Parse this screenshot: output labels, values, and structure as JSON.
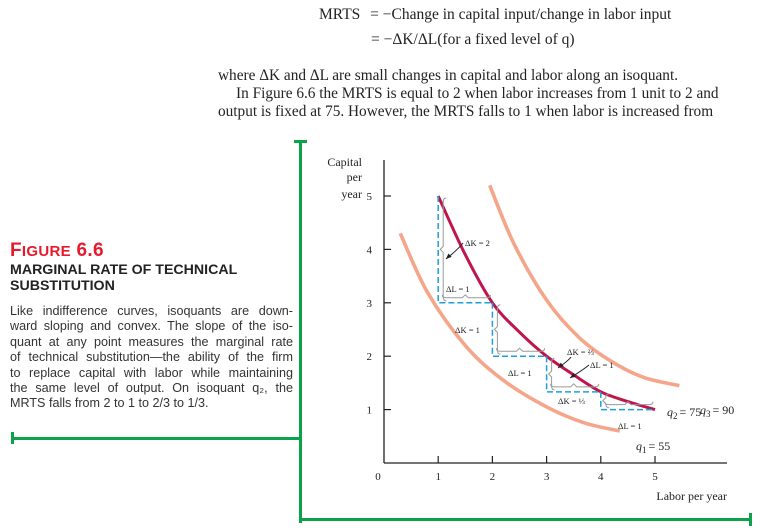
{
  "equations": {
    "line1_lhs": "MRTS",
    "line1_rhs": "= −Change in capital input/change in labor input",
    "line2_rhs": "= −ΔK/ΔL(for a fixed level of q)"
  },
  "paragraph": {
    "line1": "where ΔK and ΔL are small changes in capital and labor along an isoquant.",
    "line2": "In Figure 6.6 the MRTS is equal to 2 when labor increases from 1 unit to 2 and",
    "line3": "output is fixed at 75. However, the MRTS falls to 1 when labor is increased from"
  },
  "figure": {
    "label_first": "F",
    "label_rest": "IGURE",
    "number": "6.6",
    "title_line1": "MARGINAL RATE OF TECHNICAL",
    "title_line2": "SUBSTITUTION",
    "caption_lines": [
      "Like indifference curves, isoquants are down-",
      "ward sloping and convex. The slope of the iso-",
      "quant at any point measures the marginal rate",
      "of technical substitution—the ability of the firm",
      "to replace capital with labor while maintaining",
      "the same level of output. On isoquant q₂, the",
      "MRTS falls from 2 to 1 to 2/3 to 1/3."
    ]
  },
  "colors": {
    "accent_red": "#e8192c",
    "rule_green": "#0aa34a",
    "q2_curve": "#c0154a",
    "q1_q3_curves": "#f5a58a",
    "dashed_steps": "#1aa0dc"
  },
  "chart_data": {
    "type": "line",
    "title": "Marginal Rate of Technical Substitution",
    "xlabel": "Labor per year",
    "ylabel_lines": [
      "Capital",
      "per",
      "year"
    ],
    "xlim": [
      0,
      6.3
    ],
    "ylim": [
      0,
      5.5
    ],
    "x_ticks": [
      1,
      2,
      3,
      4,
      5
    ],
    "y_ticks": [
      1,
      2,
      3,
      4,
      5
    ],
    "origin_label": "0",
    "grid": false,
    "series": [
      {
        "name": "q1 = 55",
        "label_main": "q",
        "label_sub": "1",
        "label_value": "= 55",
        "x": [
          0.3,
          0.8,
          1.5,
          2.2,
          3.0,
          3.7,
          4.35
        ],
        "y": [
          4.3,
          3.2,
          2.2,
          1.55,
          1.05,
          0.75,
          0.6
        ]
      },
      {
        "name": "q2 = 75",
        "label_main": "q",
        "label_sub": "2",
        "label_value": "= 75",
        "x": [
          1,
          1.5,
          2,
          2.5,
          3,
          3.5,
          4,
          4.5,
          5
        ],
        "y": [
          5,
          3.9,
          3,
          2.45,
          2,
          1.65,
          1.333,
          1.15,
          1
        ]
      },
      {
        "name": "q3 = 90",
        "label_main": "q",
        "label_sub": "3",
        "label_value": "= 90",
        "x": [
          1.95,
          2.4,
          3.0,
          3.6,
          4.2,
          4.8,
          5.45
        ],
        "y": [
          5.2,
          4.1,
          3.05,
          2.35,
          1.9,
          1.6,
          1.45
        ]
      }
    ],
    "steps": [
      {
        "from": [
          1,
          5
        ],
        "to": [
          2,
          3
        ],
        "dK_label": "ΔK = 2",
        "dL_label": "ΔL = 1"
      },
      {
        "from": [
          2,
          3
        ],
        "to": [
          3,
          2
        ],
        "dK_label": "ΔK = 1",
        "dL_label": "ΔL = 1"
      },
      {
        "from": [
          3,
          2
        ],
        "to": [
          4,
          1.333
        ],
        "dK_label": "ΔK = ⅔",
        "dL_label": "ΔL = 1"
      },
      {
        "from": [
          4,
          1.333
        ],
        "to": [
          5,
          1
        ],
        "dK_label": "ΔK = ⅓",
        "dL_label": "ΔL = 1"
      }
    ],
    "mrts_values": [
      2,
      1,
      0.667,
      0.333
    ]
  }
}
